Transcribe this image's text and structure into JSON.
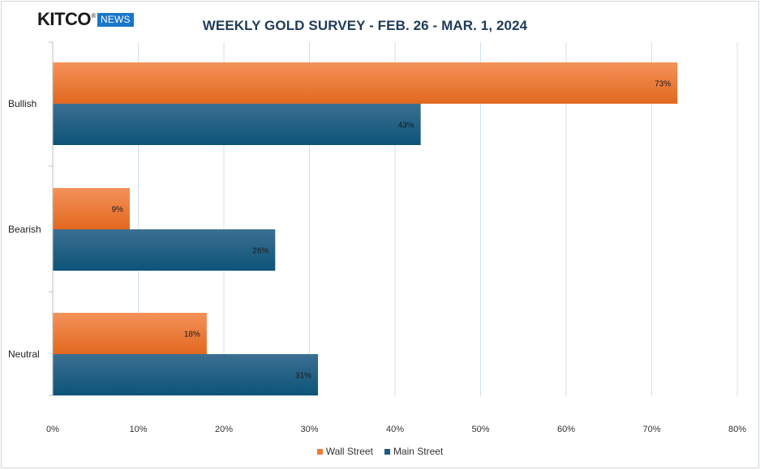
{
  "logo": {
    "name": "KITCO",
    "registered": "®",
    "badge": "NEWS"
  },
  "chart_data": {
    "type": "bar",
    "orientation": "horizontal",
    "title": "WEEKLY GOLD SURVEY - FEB. 26 - MAR. 1, 2024",
    "categories": [
      "Bullish",
      "Bearish",
      "Neutral"
    ],
    "series": [
      {
        "name": "Wall Street",
        "values": [
          73,
          9,
          18
        ],
        "color": "#ed7d31"
      },
      {
        "name": "Main Street",
        "values": [
          43,
          26,
          31
        ],
        "color": "#1c5a7e"
      }
    ],
    "xlim": [
      0,
      80
    ],
    "xticks": [
      0,
      10,
      20,
      30,
      40,
      50,
      60,
      70,
      80
    ],
    "tick_suffix": "%",
    "value_suffix": "%",
    "grid": true,
    "legend_position": "bottom"
  }
}
